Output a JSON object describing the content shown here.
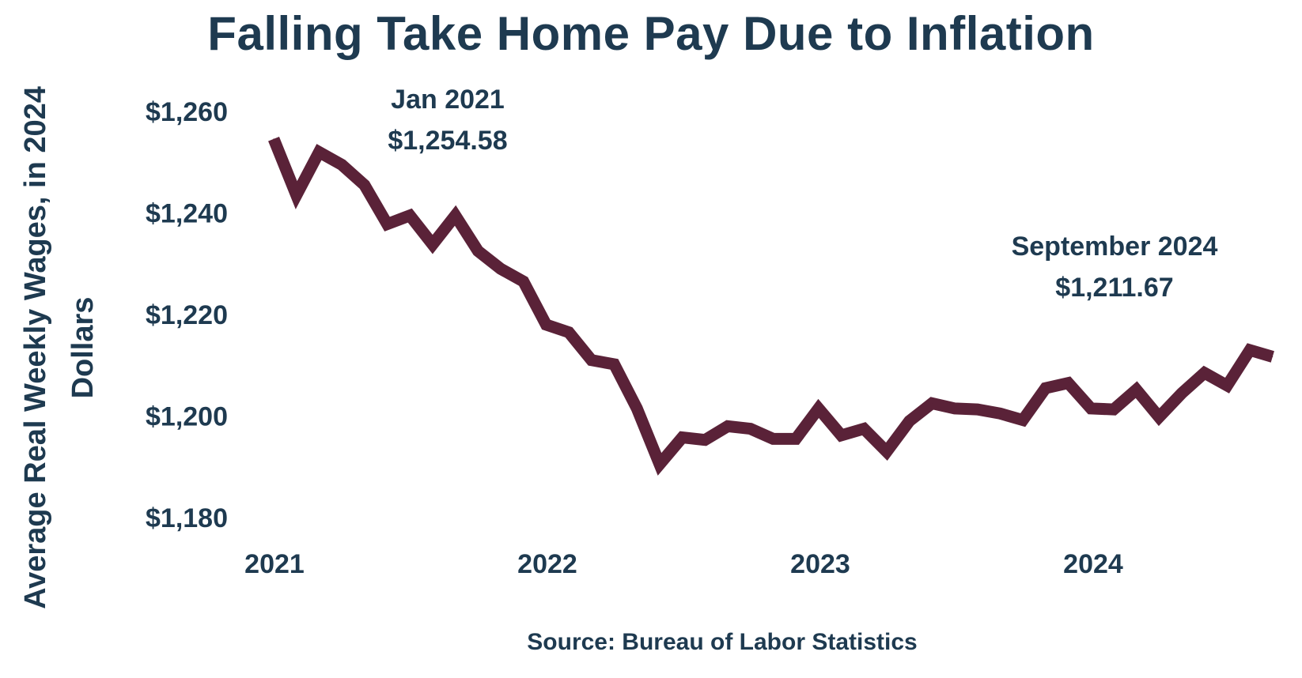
{
  "chart_data": {
    "type": "line",
    "title": "Falling Take Home Pay Due to Inflation",
    "ylabel": "Average Real Weekly Wages, in 2024 Dollars",
    "xlabel": "",
    "source": "Source: Bureau of Labor Statistics",
    "ylim": [
      1180,
      1260
    ],
    "yticks": [
      1180,
      1200,
      1220,
      1240,
      1260
    ],
    "ytick_labels": [
      "$1,180",
      "$1,200",
      "$1,220",
      "$1,240",
      "$1,260"
    ],
    "xticks": [
      2021,
      2022,
      2023,
      2024
    ],
    "xtick_labels": [
      "2021",
      "2022",
      "2023",
      "2024"
    ],
    "x_start": "2021-01",
    "grid": false,
    "line_color": "#5a2238",
    "text_color": "#1e3a50",
    "series": [
      {
        "values": [
          1254.58,
          1243.5,
          1252.0,
          1249.5,
          1245.5,
          1237.8,
          1239.5,
          1233.8,
          1239.5,
          1232.5,
          1229.0,
          1226.5,
          1218.0,
          1216.5,
          1211.0,
          1210.2,
          1201.5,
          1190.5,
          1195.8,
          1195.3,
          1198.0,
          1197.5,
          1195.5,
          1195.5,
          1201.5,
          1196.2,
          1197.5,
          1193.0,
          1199.0,
          1202.5,
          1201.5,
          1201.3,
          1200.5,
          1199.2,
          1205.5,
          1206.5,
          1201.5,
          1201.3,
          1205.2,
          1199.8,
          1204.5,
          1208.5,
          1206.0,
          1213.0,
          1211.67
        ]
      }
    ],
    "annotations": [
      {
        "line1": "Jan 2021",
        "line2": "$1,254.58"
      },
      {
        "line1": "September 2024",
        "line2": "$1,211.67"
      }
    ]
  }
}
